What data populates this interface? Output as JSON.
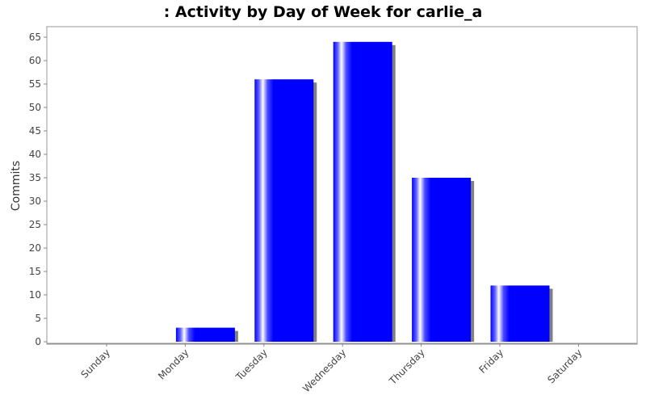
{
  "chart_data": {
    "type": "bar",
    "title": ": Activity by Day of Week for carlie_a",
    "xlabel": "",
    "ylabel": "Commits",
    "categories": [
      "Sunday",
      "Monday",
      "Tuesday",
      "Wednesday",
      "Thursday",
      "Friday",
      "Saturday"
    ],
    "values": [
      0,
      3,
      56,
      64,
      35,
      12,
      0
    ],
    "ylim": [
      0,
      67
    ],
    "yticks": [
      0,
      5,
      10,
      15,
      20,
      25,
      30,
      35,
      40,
      45,
      50,
      55,
      60,
      65
    ],
    "grid": false,
    "legend": "none",
    "bar_color": "#0000ff",
    "shadow_color": "#808080"
  }
}
